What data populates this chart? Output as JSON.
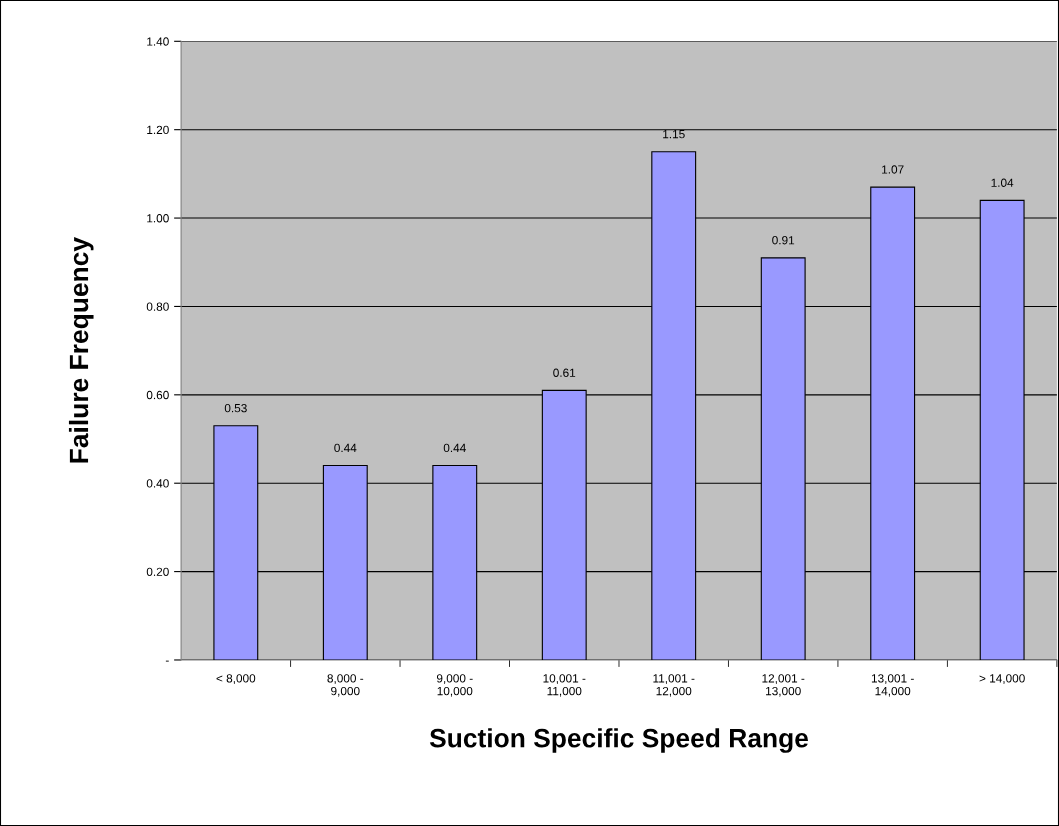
{
  "chart_data": {
    "type": "bar",
    "xlabel": "Suction Specific Speed Range",
    "ylabel": "Failure Frequency",
    "categories": [
      "< 8,000",
      "8,000 -\n9,000",
      "9,000 -\n10,000",
      "10,001 -\n11,000",
      "11,001 -\n12,000",
      "12,001 -\n13,000",
      "13,001 -\n14,000",
      "> 14,000"
    ],
    "values": [
      0.53,
      0.44,
      0.44,
      0.61,
      1.15,
      0.91,
      1.07,
      1.04
    ],
    "color": "#9999ff",
    "ylim": [
      0,
      1.4
    ],
    "yticks": [
      {
        "value": 0,
        "label": "-"
      },
      {
        "value": 0.2,
        "label": "0.20"
      },
      {
        "value": 0.4,
        "label": "0.40"
      },
      {
        "value": 0.6,
        "label": "0.60"
      },
      {
        "value": 0.8,
        "label": "0.80"
      },
      {
        "value": 1.0,
        "label": "1.00"
      },
      {
        "value": 1.2,
        "label": "1.20"
      },
      {
        "value": 1.4,
        "label": "1.40"
      }
    ],
    "grid": "y",
    "data_labels": true,
    "legend": false
  }
}
